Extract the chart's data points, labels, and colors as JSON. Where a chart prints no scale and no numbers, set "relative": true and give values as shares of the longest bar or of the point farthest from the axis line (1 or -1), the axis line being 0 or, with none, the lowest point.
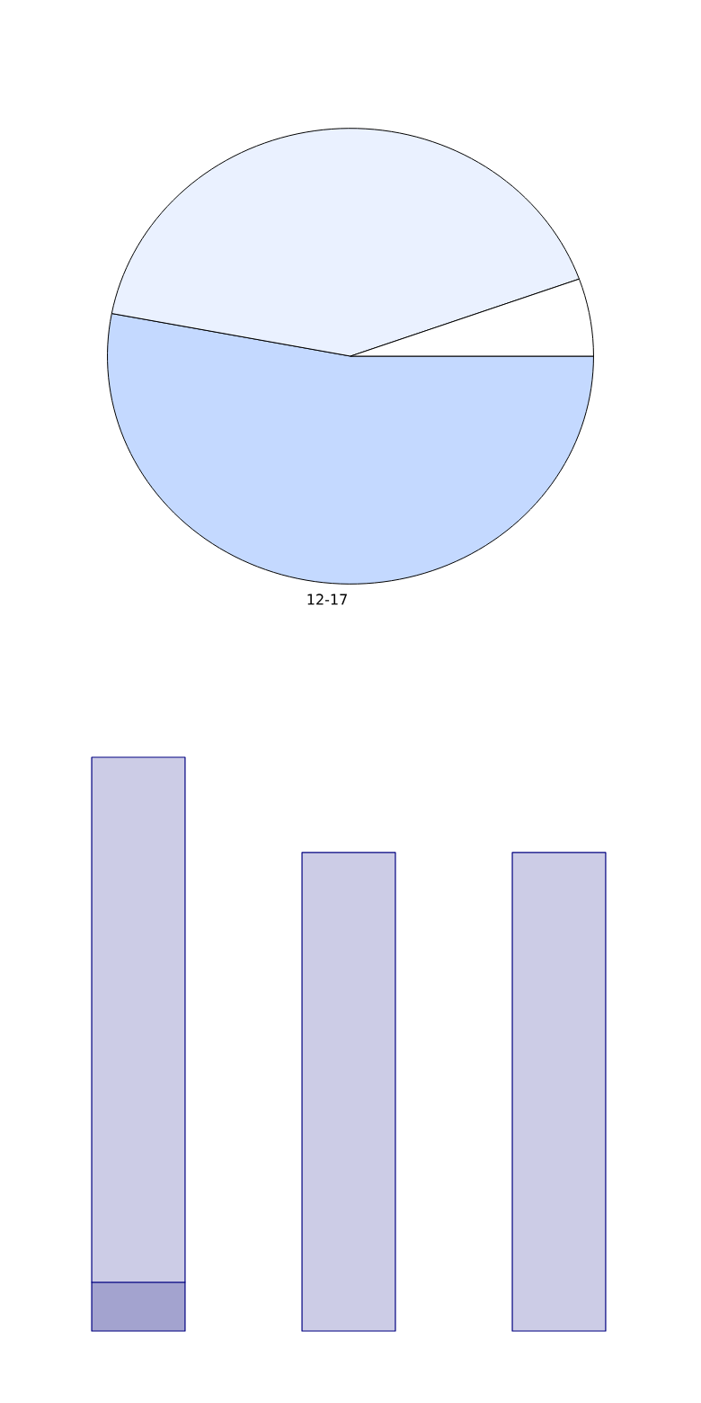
{
  "chart_data": [
    {
      "type": "pie",
      "categories": [
        "12-17",
        null,
        null
      ],
      "values": [
        53,
        41.5,
        5.5
      ],
      "colors": [
        "#c4d9ff",
        "#eaf1ff",
        "#ffffff"
      ]
    },
    {
      "type": "bar",
      "categories": [
        null,
        null,
        null
      ],
      "stacked": true,
      "relative": true,
      "series": [
        {
          "color": "#a3a3cf",
          "values": [
            0.085,
            null,
            null
          ]
        },
        {
          "color": "#cccce6",
          "values": [
            0.915,
            0.834,
            0.834
          ]
        }
      ]
    }
  ]
}
